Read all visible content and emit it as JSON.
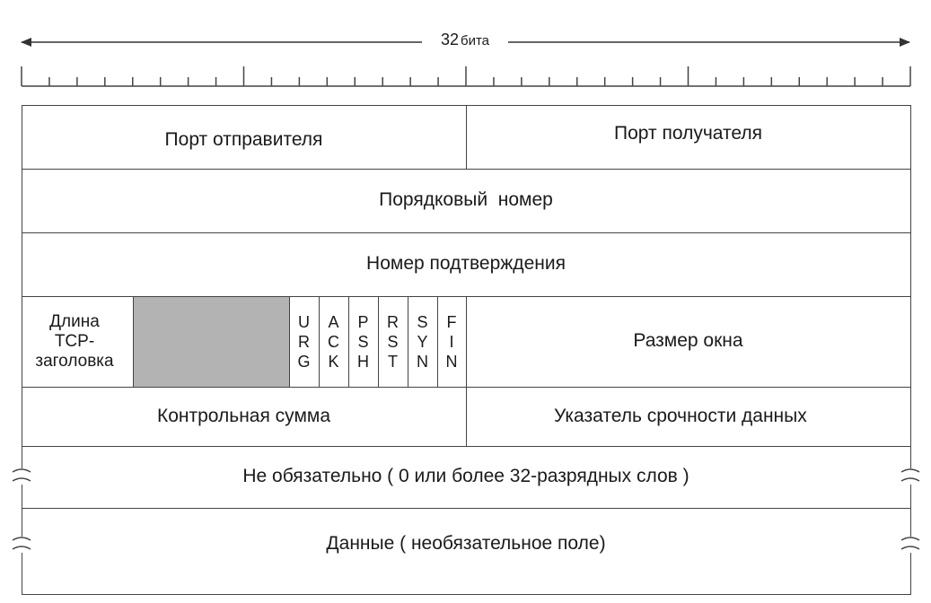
{
  "ruler": {
    "number": "32",
    "unit": "бита"
  },
  "fields": {
    "source_port": "Порт отправителя",
    "destination_port": "Порт получателя",
    "sequence_number": "Порядковый  номер",
    "acknowledgment_number": "Номер подтверждения",
    "header_length": [
      "Длина",
      "TCP-",
      "заголовка"
    ],
    "window_size": "Размер окна",
    "checksum": "Контрольная сумма",
    "urgent_pointer": "Указатель срочности данных",
    "options": "Не обязательно ( 0 или более 32-разрядных слов )",
    "data": "Данные ( необязательное поле)"
  },
  "flags": [
    {
      "name": "URG",
      "letters": [
        "U",
        "R",
        "G"
      ]
    },
    {
      "name": "ACK",
      "letters": [
        "A",
        "C",
        "K"
      ]
    },
    {
      "name": "PSH",
      "letters": [
        "P",
        "S",
        "H"
      ]
    },
    {
      "name": "RST",
      "letters": [
        "R",
        "S",
        "T"
      ]
    },
    {
      "name": "SYN",
      "letters": [
        "S",
        "Y",
        "N"
      ]
    },
    {
      "name": "FIN",
      "letters": [
        "F",
        "I",
        "N"
      ]
    }
  ],
  "colors": {
    "line": "#444444",
    "reserved_fill": "#b3b3b3",
    "text": "#1a1a1a"
  }
}
